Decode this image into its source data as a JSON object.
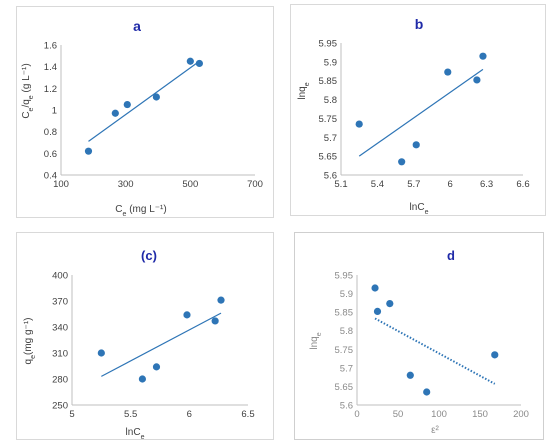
{
  "colors": {
    "point": "#2e75b6",
    "line": "#2e75b6",
    "axis": "#bfbfbf",
    "title": "#1f2aa8"
  },
  "chart_data": [
    {
      "id": "a",
      "type": "scatter",
      "title": "a",
      "xlabel": "Ce (mg L⁻¹)",
      "ylabel": "Ce/qe (g L⁻¹)",
      "xlim": [
        100,
        700
      ],
      "ylim": [
        0.4,
        1.6
      ],
      "xticks": [
        "100",
        "300",
        "500",
        "700"
      ],
      "yticks": [
        "0.4",
        "0.6",
        "0.8",
        "1",
        "1.2",
        "1.4",
        "1.6"
      ],
      "grid": false,
      "points": [
        {
          "x": 185,
          "y": 0.62
        },
        {
          "x": 268,
          "y": 0.97
        },
        {
          "x": 305,
          "y": 1.05
        },
        {
          "x": 395,
          "y": 1.12
        },
        {
          "x": 500,
          "y": 1.45
        },
        {
          "x": 528,
          "y": 1.43
        }
      ],
      "trendline": {
        "style": "solid",
        "from": [
          185,
          0.71
        ],
        "to": [
          528,
          1.45
        ]
      }
    },
    {
      "id": "b",
      "type": "scatter",
      "title": "b",
      "xlabel": "lnCe",
      "ylabel": "lnqe",
      "xlim": [
        5.1,
        6.6
      ],
      "ylim": [
        5.6,
        5.95
      ],
      "xticks": [
        "5.1",
        "5.4",
        "5.7",
        "6",
        "6.3",
        "6.6"
      ],
      "yticks": [
        "5.6",
        "5.65",
        "5.7",
        "5.75",
        "5.8",
        "5.85",
        "5.9",
        "5.95"
      ],
      "grid": false,
      "points": [
        {
          "x": 5.25,
          "y": 5.735
        },
        {
          "x": 5.6,
          "y": 5.635
        },
        {
          "x": 5.72,
          "y": 5.68
        },
        {
          "x": 5.98,
          "y": 5.873
        },
        {
          "x": 6.22,
          "y": 5.852
        },
        {
          "x": 6.27,
          "y": 5.915
        }
      ],
      "trendline": {
        "style": "solid",
        "from": [
          5.25,
          5.65
        ],
        "to": [
          6.27,
          5.88
        ]
      }
    },
    {
      "id": "c",
      "type": "scatter",
      "title": "(c)",
      "xlabel": "lnCe",
      "ylabel": "qe(mg g⁻¹)",
      "xlim": [
        5,
        6.5
      ],
      "ylim": [
        250,
        400
      ],
      "xticks": [
        "5",
        "5.5",
        "6",
        "6.5"
      ],
      "yticks": [
        "250",
        "280",
        "310",
        "340",
        "370",
        "400"
      ],
      "grid": false,
      "points": [
        {
          "x": 5.25,
          "y": 310
        },
        {
          "x": 5.6,
          "y": 280
        },
        {
          "x": 5.72,
          "y": 294
        },
        {
          "x": 5.98,
          "y": 354
        },
        {
          "x": 6.22,
          "y": 347
        },
        {
          "x": 6.27,
          "y": 371
        }
      ],
      "trendline": {
        "style": "solid",
        "from": [
          5.25,
          283
        ],
        "to": [
          6.27,
          356
        ]
      }
    },
    {
      "id": "d",
      "type": "scatter",
      "title": "d",
      "xlabel": "ε²",
      "ylabel": "lnqe",
      "xlim": [
        0,
        200
      ],
      "ylim": [
        5.6,
        5.95
      ],
      "xticks": [
        "0",
        "50",
        "100",
        "150",
        "200"
      ],
      "yticks": [
        "5.6",
        "5.65",
        "5.7",
        "5.75",
        "5.8",
        "5.85",
        "5.9",
        "5.95"
      ],
      "grid": false,
      "points": [
        {
          "x": 22,
          "y": 5.915
        },
        {
          "x": 25,
          "y": 5.852
        },
        {
          "x": 40,
          "y": 5.873
        },
        {
          "x": 65,
          "y": 5.68
        },
        {
          "x": 85,
          "y": 5.635
        },
        {
          "x": 168,
          "y": 5.735
        }
      ],
      "trendline": {
        "style": "dotted",
        "from": [
          22,
          5.833
        ],
        "to": [
          168,
          5.657
        ]
      }
    }
  ]
}
